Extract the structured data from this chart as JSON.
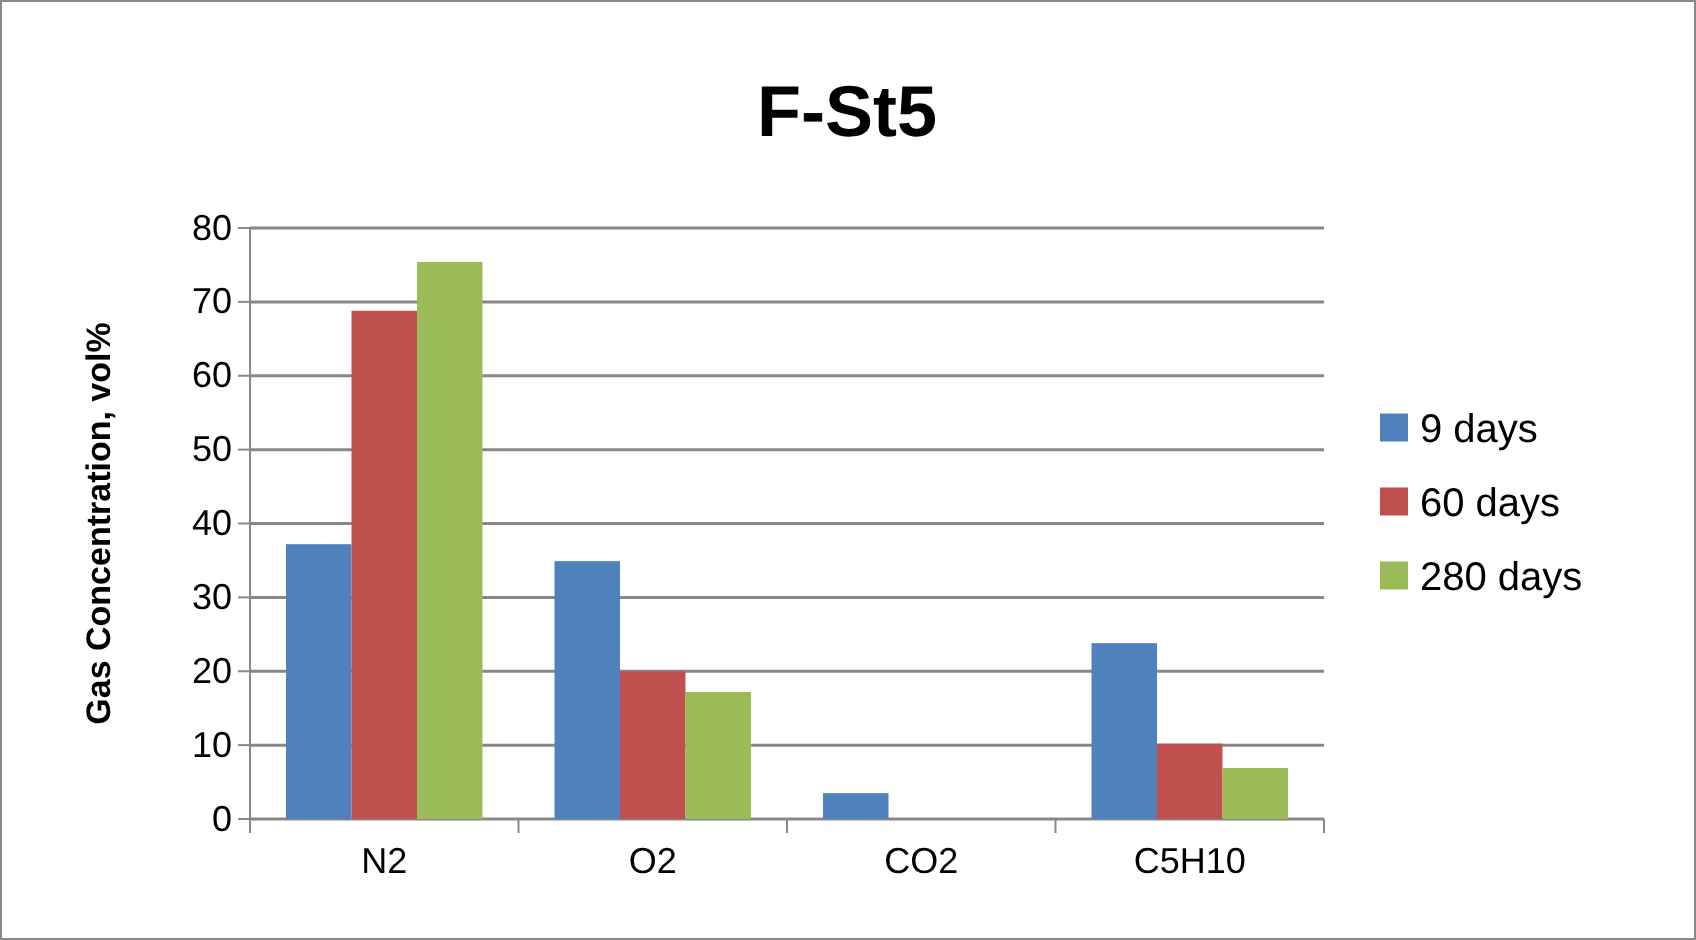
{
  "chart_data": {
    "type": "bar",
    "title": "F-St5",
    "ylabel": "Gas Concentration, vol%",
    "categories": [
      "N2",
      "O2",
      "CO2",
      "C5H10"
    ],
    "series": [
      {
        "name": "9 days",
        "color": "#4f81bd",
        "values": [
          37.2,
          34.9,
          3.5,
          23.8
        ]
      },
      {
        "name": "60 days",
        "color": "#c0504d",
        "values": [
          68.8,
          20.0,
          0,
          10.2
        ]
      },
      {
        "name": "280 days",
        "color": "#9bbb59",
        "values": [
          75.4,
          17.2,
          0,
          6.9
        ]
      }
    ],
    "ylim": [
      0,
      80
    ],
    "yticks": [
      0,
      10,
      20,
      30,
      40,
      50,
      60,
      70,
      80
    ],
    "grid": "y",
    "legend": "right"
  }
}
